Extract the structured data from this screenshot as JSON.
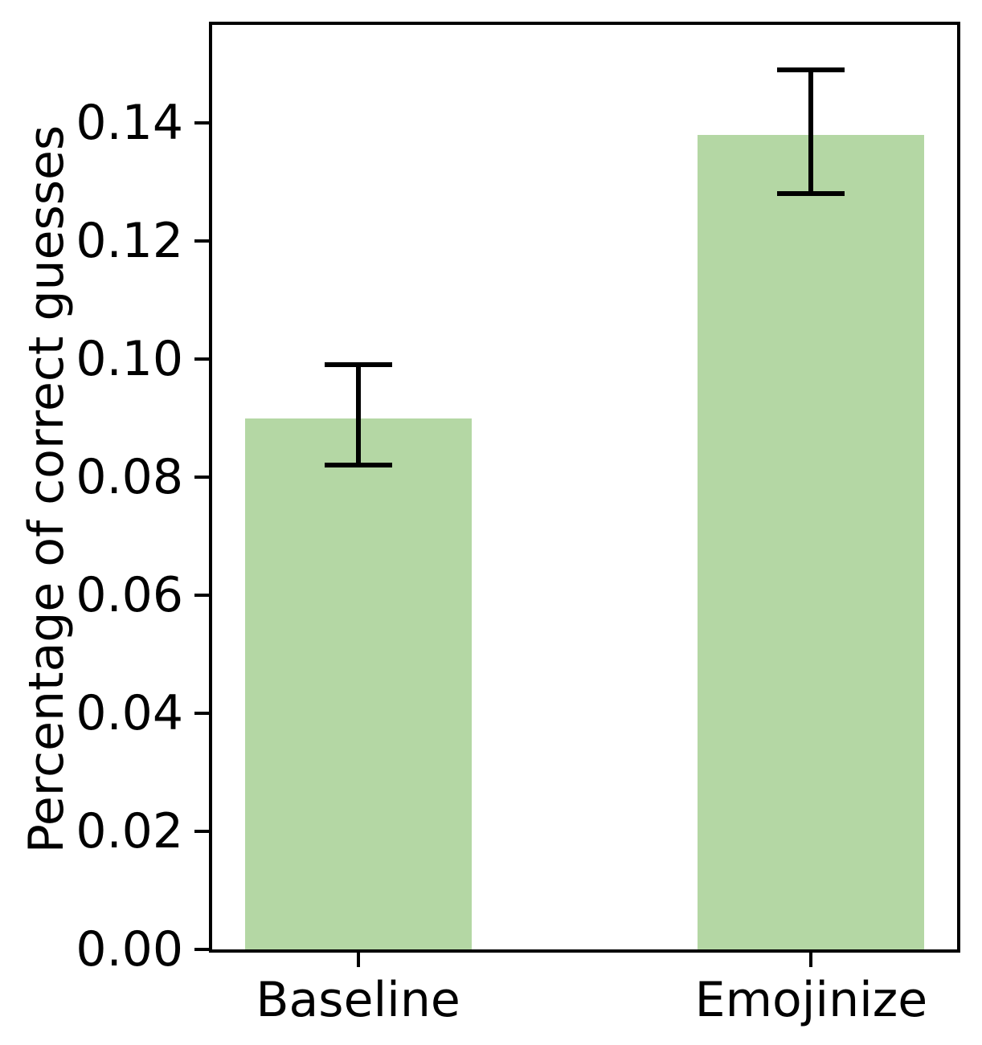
{
  "figure": {
    "background": "#ffffff"
  },
  "chart_data": {
    "type": "bar",
    "title": "",
    "xlabel": "",
    "ylabel": "Percentage of correct guesses",
    "categories": [
      "Baseline",
      "Emojinize"
    ],
    "values": [
      0.09,
      0.138
    ],
    "error_upper": [
      0.099,
      0.149
    ],
    "error_lower": [
      0.082,
      0.128
    ],
    "ytick_labels": [
      "0.00",
      "0.02",
      "0.04",
      "0.06",
      "0.08",
      "0.10",
      "0.12",
      "0.14"
    ],
    "ytick_values": [
      0,
      0.02,
      0.04,
      0.06,
      0.08,
      0.1,
      0.12,
      0.14
    ],
    "ylim": [
      0,
      0.1566
    ],
    "xlim": [
      -0.322,
      1.322
    ],
    "bar_width": 0.5,
    "bar_color": "#b4d7a4",
    "error_color": "#000000",
    "axis_color": "#000000",
    "grid": false,
    "legend": "none"
  }
}
